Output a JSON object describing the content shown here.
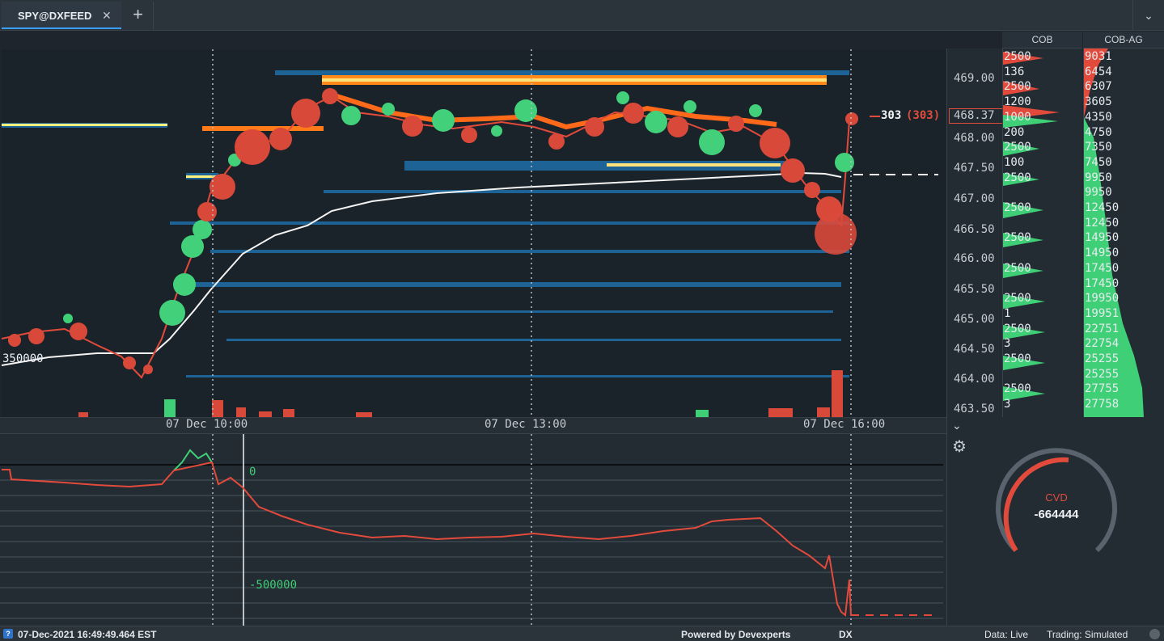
{
  "tab": {
    "title": "SPY@DXFEED",
    "close_icon": "close-icon",
    "add_icon": "plus-icon",
    "menu_icon": "chevron-down-icon"
  },
  "main_chart": {
    "time_labels": [
      "07 Dec 10:00",
      "07 Dec 13:00",
      "07 Dec 16:00"
    ],
    "left_volume_label": "350000",
    "current_trade_size": "303",
    "current_trade_size_bracket": "(303)",
    "price_ticks": [
      "469.00",
      "468.00",
      "467.50",
      "467.00",
      "466.50",
      "466.00",
      "465.50",
      "465.00",
      "464.50",
      "464.00",
      "463.50"
    ],
    "current_price": "468.37"
  },
  "cob": {
    "header": "COB",
    "values": [
      "2500",
      "136",
      "2500",
      "1200",
      "1000",
      "200",
      "2500",
      "100",
      "2500",
      "",
      "2500",
      "",
      "2500",
      "",
      "2500",
      "",
      "2500",
      "1",
      "2500",
      "3",
      "2500",
      "",
      "2500",
      "3"
    ]
  },
  "cob_ag": {
    "header": "COB-AG",
    "values": [
      "9031",
      "6454",
      "6307",
      "3605",
      "4350",
      "4750",
      "7350",
      "7450",
      "9950",
      "9950",
      "12450",
      "12450",
      "14950",
      "14950",
      "17450",
      "17450",
      "19950",
      "19951",
      "22751",
      "22754",
      "25255",
      "25255",
      "27755",
      "27758"
    ]
  },
  "indicator": {
    "zero_label": "0",
    "neg_label": "-500000",
    "gauge_name": "CVD",
    "gauge_value": "-664444"
  },
  "colors": {
    "bid": "#34c46a",
    "ask": "#e24b3b",
    "accent": "#3aa0ff"
  },
  "status": {
    "timestamp": "07-Dec-2021 16:49:49.464 EST",
    "powered_by": "Powered by Devexperts",
    "dx": "DX",
    "data": "Data: Live",
    "trading": "Trading: Simulated"
  }
}
